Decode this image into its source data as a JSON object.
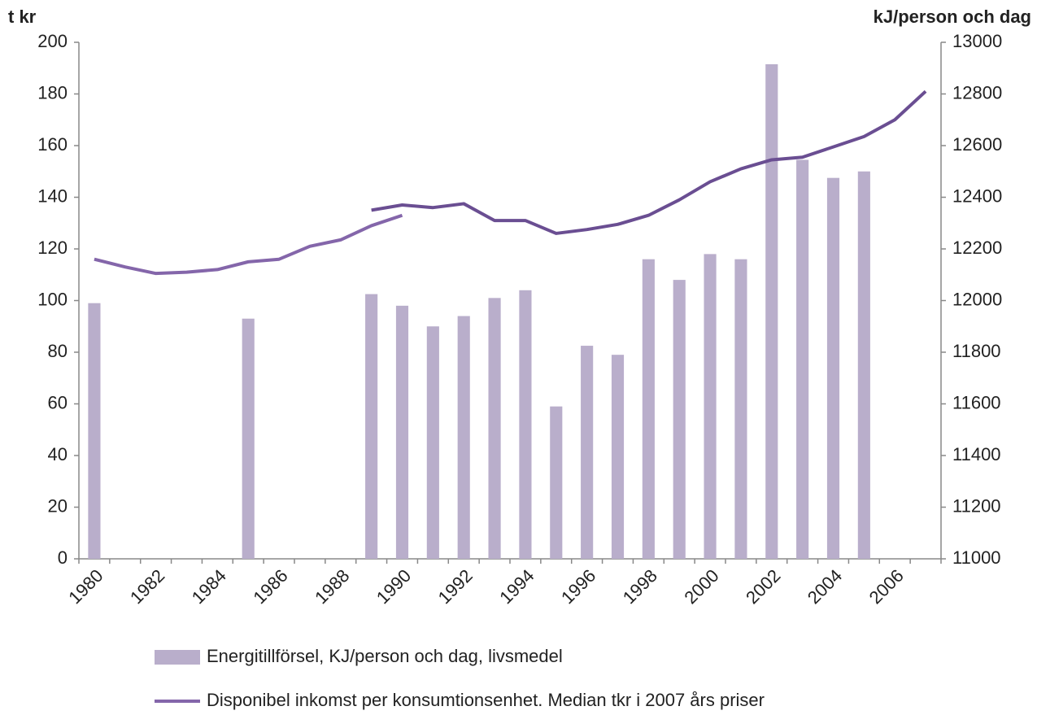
{
  "chart_data": {
    "type": "bar",
    "y_label": "t kr",
    "y2_label": "kJ/person och dag",
    "categories": [
      "1980",
      null,
      "1982",
      null,
      "1984",
      null,
      "1986",
      null,
      "1988",
      null,
      "1990",
      null,
      "1992",
      null,
      "1994",
      null,
      "1996",
      null,
      "1998",
      null,
      "2000",
      null,
      "2002",
      null,
      "2004",
      null,
      "2006",
      null
    ],
    "ylim": [
      0,
      200
    ],
    "yticks": [
      0,
      20,
      40,
      60,
      80,
      100,
      120,
      140,
      160,
      180,
      200
    ],
    "y2lim": [
      11000,
      13000
    ],
    "y2ticks": [
      11000,
      11200,
      11400,
      11600,
      11800,
      12000,
      12200,
      12400,
      12600,
      12800,
      13000
    ],
    "series": [
      {
        "name": "Energitillförsel, KJ/person och dag, livsmedel",
        "type": "bar",
        "axis": "y2",
        "color": "#b9aecb",
        "values": [
          11990,
          null,
          null,
          null,
          null,
          11930,
          null,
          null,
          null,
          12025,
          11980,
          11900,
          11940,
          12010,
          12040,
          11590,
          11825,
          11790,
          12160,
          12080,
          12180,
          12160,
          12915,
          12545,
          12475,
          12500,
          null,
          null
        ]
      },
      {
        "name": "Disponibel inkomst per konsumtionsenhet. Median tkr i 2007 års priser",
        "type": "line",
        "color": "#8466aa",
        "values": [
          116,
          113,
          110.5,
          111,
          112,
          115,
          116,
          121,
          123.5,
          129,
          133,
          null,
          null,
          null,
          null,
          null,
          null,
          null,
          null,
          null,
          null,
          null,
          null,
          null,
          null,
          null,
          null,
          null
        ]
      },
      {
        "type": "line",
        "color": "#6a4e92",
        "values": [
          null,
          null,
          null,
          null,
          null,
          null,
          null,
          null,
          null,
          135,
          137,
          136,
          137.5,
          131,
          131,
          126,
          127.5,
          129.5,
          133,
          139,
          146,
          151,
          154.5,
          155.5,
          159.5,
          163.5,
          170,
          181
        ]
      }
    ]
  }
}
